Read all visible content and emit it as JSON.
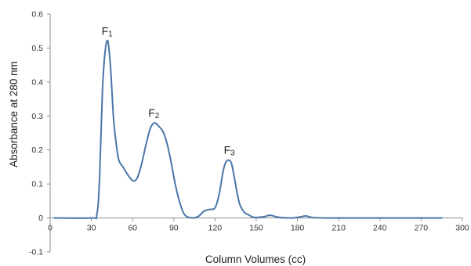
{
  "chart_data": {
    "type": "line",
    "title": "",
    "xlabel": "Column Volumes (cc)",
    "ylabel": "Absorbance  at 280 nm",
    "xlim": [
      0,
      300
    ],
    "ylim": [
      -0.1,
      0.6
    ],
    "x_ticks": [
      "0",
      "30",
      "60",
      "90",
      "120",
      "150",
      "180",
      "210",
      "240",
      "270",
      "300"
    ],
    "y_ticks": [
      "-0.1",
      "0",
      "0.1",
      "0.2",
      "0.3",
      "0.4",
      "0.5",
      "0.6"
    ],
    "grid": false,
    "legend": "none",
    "line_color": "#4a76a8",
    "annotations": [
      {
        "main": "F",
        "sub": "1",
        "x": 42,
        "y": 0.52
      },
      {
        "main": "F",
        "sub": "2",
        "x": 76,
        "y": 0.28
      },
      {
        "main": "F",
        "sub": "3",
        "x": 131,
        "y": 0.17
      }
    ],
    "series": [
      {
        "x": [
          3,
          30,
          34,
          36,
          38,
          40,
          42,
          44,
          46,
          48,
          50,
          53,
          56,
          60,
          63,
          66,
          70,
          73,
          76,
          79,
          82,
          85,
          88,
          91,
          94,
          97,
          100,
          104,
          108,
          112,
          116,
          120,
          123,
          126,
          128,
          130,
          132,
          134,
          136,
          138,
          141,
          144,
          148,
          152,
          156,
          160,
          164,
          168,
          176,
          182,
          186,
          190,
          200,
          240,
          285
        ],
        "y": [
          0,
          0,
          0.01,
          0.12,
          0.37,
          0.49,
          0.52,
          0.44,
          0.3,
          0.22,
          0.17,
          0.15,
          0.13,
          0.11,
          0.115,
          0.15,
          0.22,
          0.265,
          0.28,
          0.27,
          0.255,
          0.22,
          0.165,
          0.1,
          0.05,
          0.015,
          0.003,
          0,
          0.005,
          0.02,
          0.025,
          0.03,
          0.07,
          0.14,
          0.165,
          0.17,
          0.16,
          0.12,
          0.075,
          0.04,
          0.018,
          0.01,
          0.002,
          0.002,
          0.004,
          0.008,
          0.004,
          0.001,
          0,
          0.003,
          0.006,
          0.002,
          0,
          0,
          0
        ]
      }
    ]
  }
}
